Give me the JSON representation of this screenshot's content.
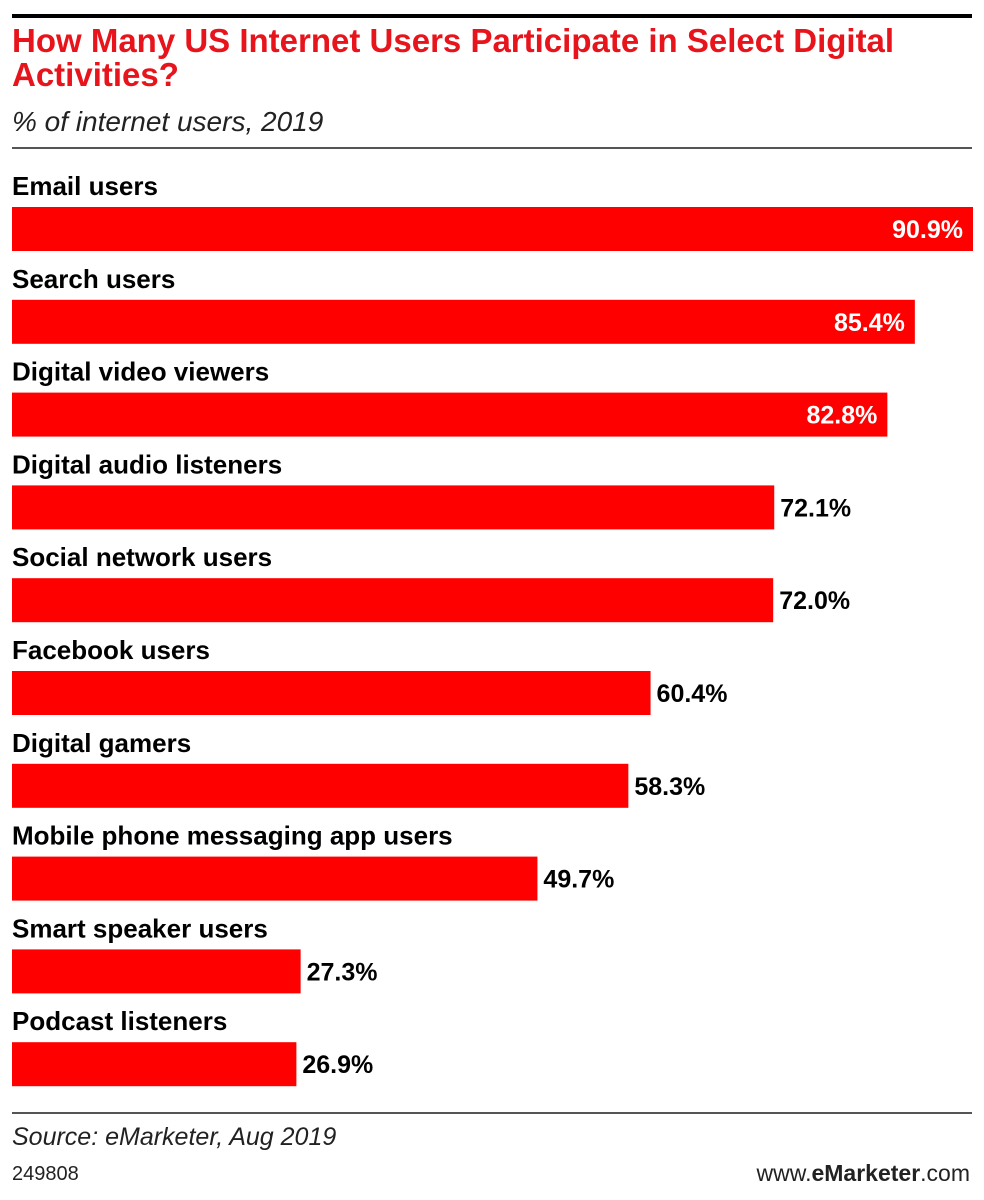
{
  "title": "How Many US Internet Users Participate in Select Digital Activities?",
  "subtitle": "% of internet users, 2019",
  "footer": {
    "source": "Source: eMarketer, Aug 2019",
    "chart_id": "249808",
    "site_prefix": "www.",
    "site_brand": "eMarketer",
    "site_suffix": ".com"
  },
  "colors": {
    "bar": "#ff0000",
    "title": "#e8141b",
    "label_inside": "#ffffff",
    "label_outside": "#000000"
  },
  "chart_data": {
    "type": "bar",
    "orientation": "horizontal",
    "title": "How Many US Internet Users Participate in Select Digital Activities?",
    "subtitle": "% of internet users, 2019",
    "categories": [
      "Email users",
      "Search users",
      "Digital video viewers",
      "Digital audio listeners",
      "Social network users",
      "Facebook users",
      "Digital gamers",
      "Mobile phone messaging app users",
      "Smart speaker users",
      "Podcast listeners"
    ],
    "values": [
      90.9,
      85.4,
      82.8,
      72.1,
      72.0,
      60.4,
      58.3,
      49.7,
      27.3,
      26.9
    ],
    "value_labels": [
      "90.9%",
      "85.4%",
      "82.8%",
      "72.1%",
      "72.0%",
      "60.4%",
      "58.3%",
      "49.7%",
      "27.3%",
      "26.9%"
    ],
    "grid": false,
    "legend": "none"
  }
}
